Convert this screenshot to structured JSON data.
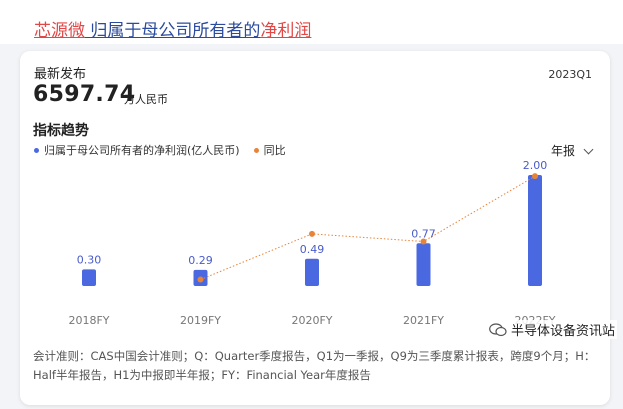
{
  "header": {
    "company": "芯源微",
    "metric_part": " 归属于母公司所有者的",
    "metric_tail": "净利润"
  },
  "summary": {
    "latest_label": "最新发布",
    "latest_value": "6597.74",
    "latest_unit": "万人民币",
    "period": "2023Q1"
  },
  "trend": {
    "title": "指标趋势",
    "period_selector": "年报"
  },
  "colors": {
    "bar": "#4a68e0",
    "line": "#e8843a"
  },
  "chart_data": {
    "type": "bar",
    "categories": [
      "2018FY",
      "2019FY",
      "2020FY",
      "2021FY",
      "2022FY"
    ],
    "series": [
      {
        "name": "归属于母公司所有者的净利润(亿人民币)",
        "values": [
          0.3,
          0.29,
          0.49,
          0.77,
          2.0
        ]
      },
      {
        "name": "同比",
        "type": "line",
        "values": [
          null,
          -3,
          69,
          57,
          160
        ]
      }
    ],
    "value_labels": [
      "0.30",
      "0.29",
      "0.49",
      "0.77",
      "2.00"
    ],
    "ylim": [
      0,
      2.0
    ],
    "grid": false,
    "legend": "top-left"
  },
  "footnote": "会计准则：CAS中国会计准则；Q：Quarter季度报告，Q1为一季报，Q9为三季度累计报表，跨度9个月；H：Half半年报告，H1为中报即半年报；FY：Financial Year年度报告",
  "watermark": {
    "text": "半导体设备资讯站"
  }
}
